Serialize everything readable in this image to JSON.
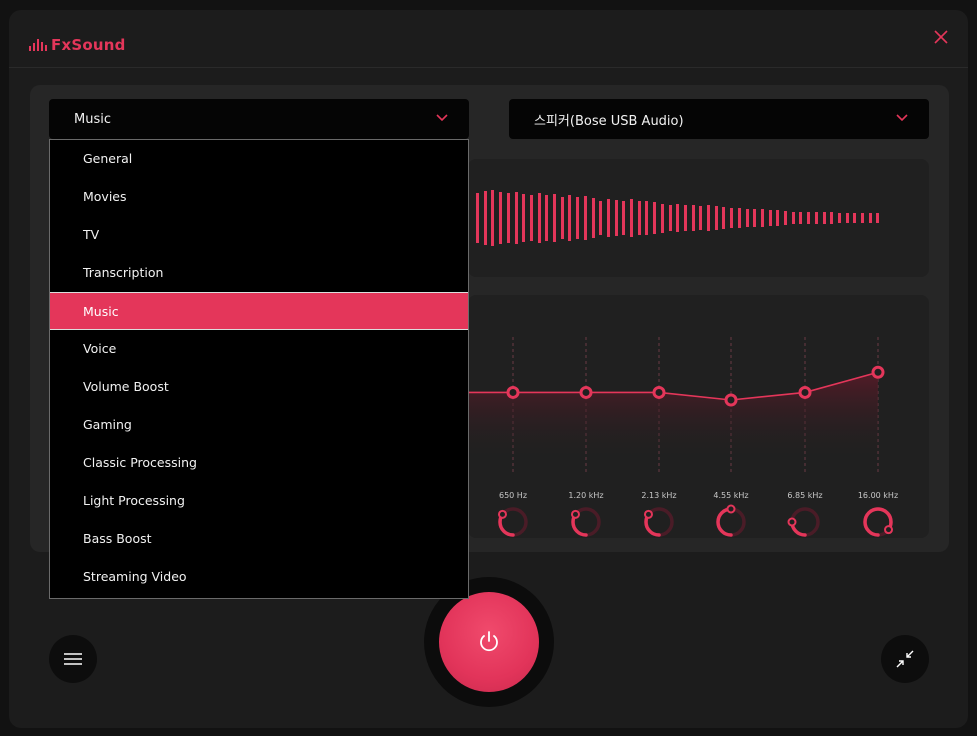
{
  "app": {
    "name": "FxSound"
  },
  "colors": {
    "accent": "#e4365a",
    "background": "#1c1c1c",
    "panel": "#262626"
  },
  "icons": {
    "close": "close-icon",
    "chevron": "chevron-down-icon",
    "menu": "hamburger-menu-icon",
    "power": "power-icon",
    "collapse": "collapse-arrows-icon"
  },
  "preset_select": {
    "value": "Music"
  },
  "device_select": {
    "value": "스피커(Bose USB Audio)"
  },
  "preset_dropdown": {
    "selected_index": 4,
    "items": [
      "General",
      "Movies",
      "TV",
      "Transcription",
      "Music",
      "Voice",
      "Volume Boost",
      "Gaming",
      "Classic Processing",
      "Light Processing",
      "Bass Boost",
      "Streaming Video"
    ]
  },
  "equalizer": {
    "bands": [
      {
        "label": "650 Hz",
        "knob_level": 0.35
      },
      {
        "label": "1.20 kHz",
        "knob_level": 0.35
      },
      {
        "label": "2.13 kHz",
        "knob_level": 0.35
      },
      {
        "label": "4.55 kHz",
        "knob_level": 0.5
      },
      {
        "label": "6.85 kHz",
        "knob_level": 0.25
      },
      {
        "label": "16.00 kHz",
        "knob_level": 0.85
      }
    ],
    "curve_levels": [
      0.56,
      0.56,
      0.56,
      0.5,
      0.56,
      0.72
    ],
    "curve_left_level": 0.56
  },
  "visualizer": {
    "levels": [
      0.86,
      0.92,
      0.96,
      0.9,
      0.86,
      0.88,
      0.84,
      0.8,
      0.86,
      0.78,
      0.82,
      0.74,
      0.8,
      0.72,
      0.76,
      0.7,
      0.6,
      0.64,
      0.62,
      0.6,
      0.64,
      0.58,
      0.6,
      0.56,
      0.5,
      0.46,
      0.48,
      0.44,
      0.46,
      0.42,
      0.44,
      0.42,
      0.38,
      0.36,
      0.34,
      0.32,
      0.3,
      0.3,
      0.28,
      0.26,
      0.24,
      0.22,
      0.22,
      0.22,
      0.2,
      0.2,
      0.2,
      0.18,
      0.18,
      0.18,
      0.16,
      0.16,
      0.16
    ]
  }
}
